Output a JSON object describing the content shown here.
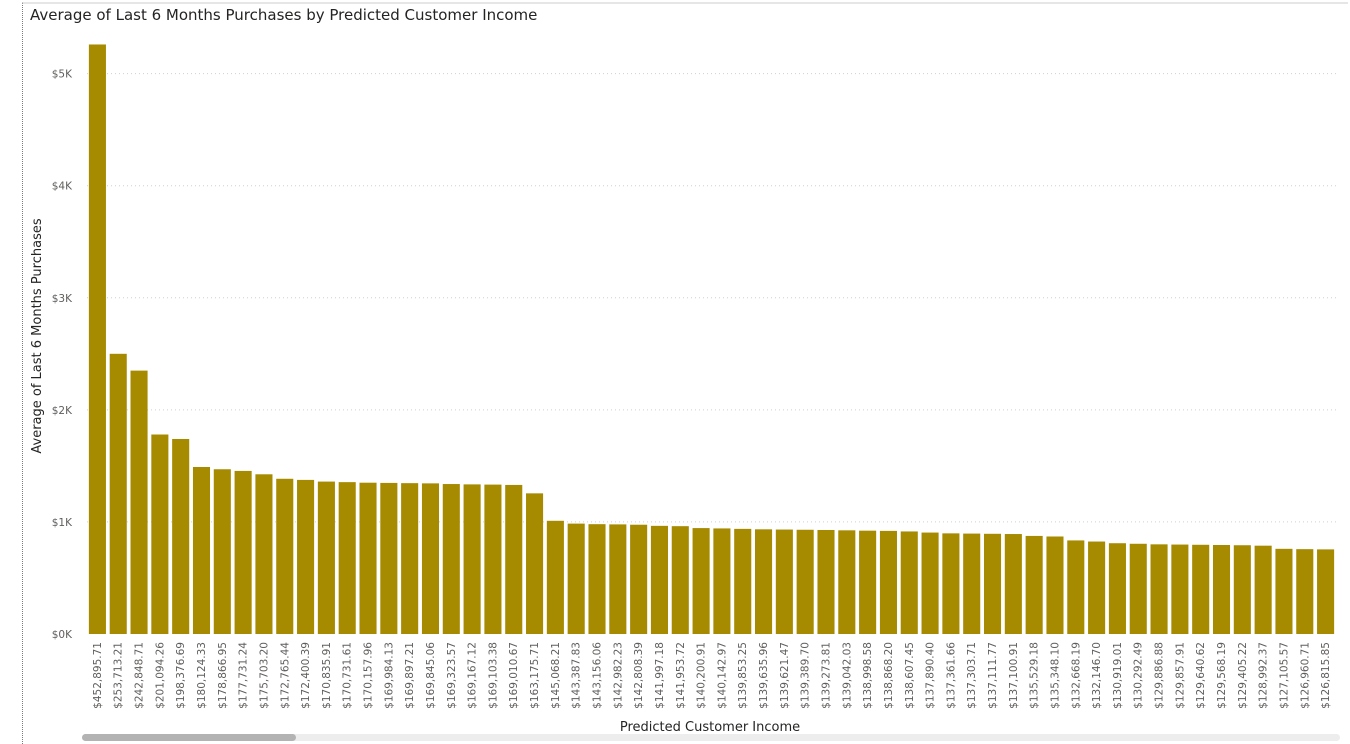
{
  "chart_data": {
    "type": "bar",
    "title": "Average of Last 6 Months Purchases by Predicted Customer Income",
    "xlabel": "Predicted Customer Income",
    "ylabel": "Average of Last 6 Months Purchases",
    "ylim": [
      0,
      5300
    ],
    "yticks": [
      0,
      1000,
      2000,
      3000,
      4000,
      5000
    ],
    "ytick_labels": [
      "$0K",
      "$1K",
      "$2K",
      "$3K",
      "$4K",
      "$5K"
    ],
    "grid": true,
    "bar_color": "#a68a00",
    "categories": [
      "$452,895.71",
      "$253,713.21",
      "$242,848.71",
      "$201,094.26",
      "$198,376.69",
      "$180,124.33",
      "$178,866.95",
      "$177,731.24",
      "$175,703.20",
      "$172,765.44",
      "$172,400.39",
      "$170,835.91",
      "$170,731.61",
      "$170,157.96",
      "$169,984.13",
      "$169,897.21",
      "$169,845.06",
      "$169,323.57",
      "$169,167.12",
      "$169,103.38",
      "$169,010.67",
      "$163,175.71",
      "$145,068.21",
      "$143,387.83",
      "$143,156.06",
      "$142,982.23",
      "$142,808.39",
      "$141,997.18",
      "$141,953.72",
      "$140,200.91",
      "$140,142.97",
      "$139,853.25",
      "$139,635.96",
      "$139,621.47",
      "$139,389.70",
      "$139,273.81",
      "$139,042.03",
      "$138,998.58",
      "$138,868.20",
      "$138,607.45",
      "$137,890.40",
      "$137,361.66",
      "$137,303.71",
      "$137,111.77",
      "$137,100.91",
      "$135,529.18",
      "$135,348.10",
      "$132,668.19",
      "$132,146.70",
      "$130,919.01",
      "$130,292.49",
      "$129,886.88",
      "$129,857.91",
      "$129,640.62",
      "$129,568.19",
      "$129,405.22",
      "$128,992.37",
      "$127,105.57",
      "$126,960.71",
      "$126,815.85"
    ],
    "values": [
      5260,
      2500,
      2350,
      1780,
      1740,
      1490,
      1470,
      1455,
      1425,
      1385,
      1375,
      1360,
      1355,
      1350,
      1348,
      1346,
      1344,
      1338,
      1335,
      1333,
      1330,
      1255,
      1010,
      985,
      980,
      978,
      975,
      965,
      962,
      945,
      942,
      938,
      934,
      932,
      930,
      928,
      925,
      922,
      920,
      915,
      905,
      898,
      896,
      894,
      892,
      875,
      870,
      835,
      825,
      810,
      805,
      800,
      798,
      796,
      794,
      792,
      788,
      760,
      757,
      755
    ]
  },
  "scrollbar": {
    "position_fraction": 0.0,
    "visible_fraction": 0.17
  }
}
